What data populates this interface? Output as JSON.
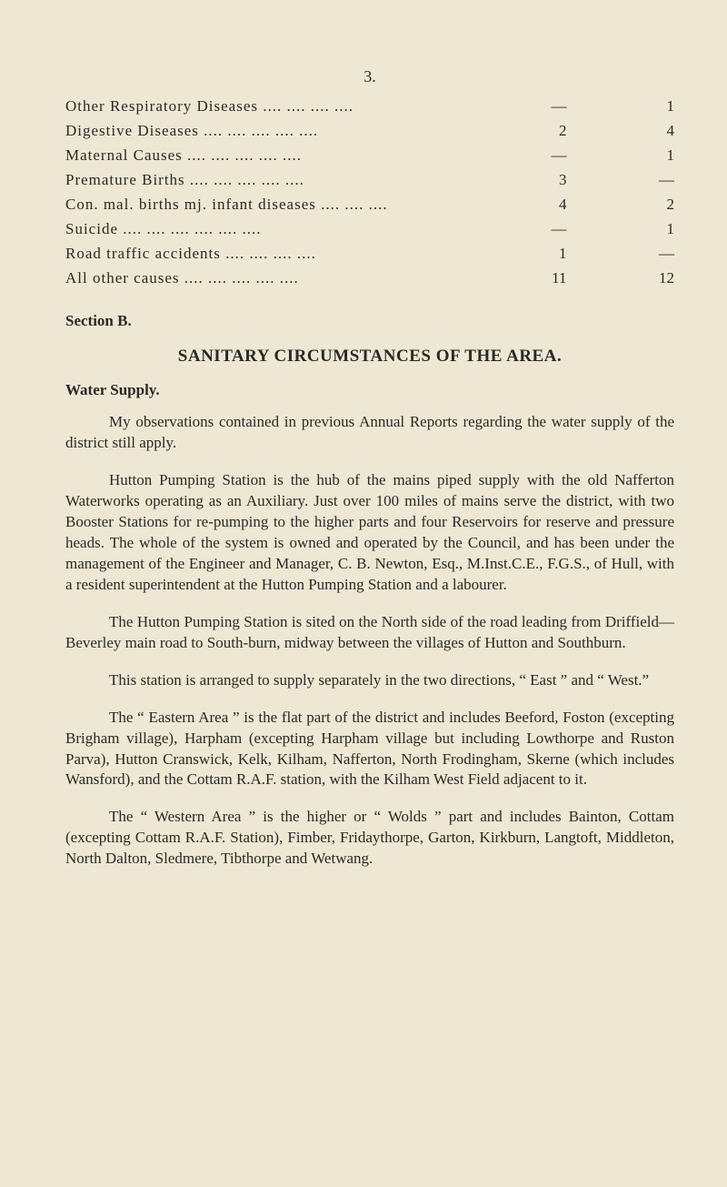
{
  "page_number": "3.",
  "stats": {
    "rows": [
      {
        "label": "Other Respiratory Diseases   ....        ....        ....       ....",
        "c1": "—",
        "c2": "1"
      },
      {
        "label": "Digestive Diseases      ....        ....        ....        ....       ....",
        "c1": "2",
        "c2": "4"
      },
      {
        "label": "Maternal Causes        ....        ....        ....        ....       ....",
        "c1": "—",
        "c2": "1"
      },
      {
        "label": "Premature Births       ....        ....        ....        ....       ....",
        "c1": "3",
        "c2": "—"
      },
      {
        "label": "Con. mal. births mj. infant diseases ....        ....       ....",
        "c1": "4",
        "c2": "2"
      },
      {
        "label": "Suicide            ....        ....        ....        ....        ....       ....",
        "c1": "—",
        "c2": "1"
      },
      {
        "label": "Road traffic accidents           ....        ....        ....       ....",
        "c1": "1",
        "c2": "—"
      },
      {
        "label": "All other causes       ....        ....        ....        ....       ....",
        "c1": "11",
        "c2": "12"
      }
    ]
  },
  "section_b": "Section B.",
  "sanitary_heading": "SANITARY  CIRCUMSTANCES  OF  THE  AREA.",
  "water_supply_heading": "Water Supply.",
  "paragraphs": {
    "p1": "My observations contained in previous Annual Reports regarding the water supply of the district still apply.",
    "p2": "Hutton Pumping Station is the hub of the mains piped supply with the old Nafferton Waterworks operating as an Auxiliary. Just over 100 miles of mains serve the district, with two Booster Stations for re-pumping to the higher parts and four Reservoirs for reserve and pressure heads. The whole of the system is owned and operated by the Council, and has been under the management of the Engineer and Manager, C. B. Newton, Esq., M.Inst.C.E., F.G.S., of Hull, with a resident superintendent at the Hutton Pumping Station and a labourer.",
    "p3": "The Hutton Pumping Station is sited on the North side of the road leading from Driffield—Beverley main road to South-burn, midway between the villages of Hutton and Southburn.",
    "p4": "This station is arranged to supply separately in the two directions, “ East ” and “ West.”",
    "p5": "The “ Eastern Area ” is the flat part of the district and includes Beeford, Foston (excepting Brigham village), Harpham (excepting Harpham village but including Lowthorpe and Ruston Parva), Hutton Cranswick, Kelk, Kilham, Nafferton, North Frodingham, Skerne (which includes Wansford), and the Cottam R.A.F. station, with the Kilham West Field adjacent to it.",
    "p6": "The “ Western Area ” is the higher or “ Wolds ” part and includes Bainton, Cottam (excepting Cottam R.A.F. Station), Fimber, Fridaythorpe, Garton, Kirkburn, Langtoft, Middleton, North Dalton, Sledmere, Tibthorpe and Wetwang."
  }
}
